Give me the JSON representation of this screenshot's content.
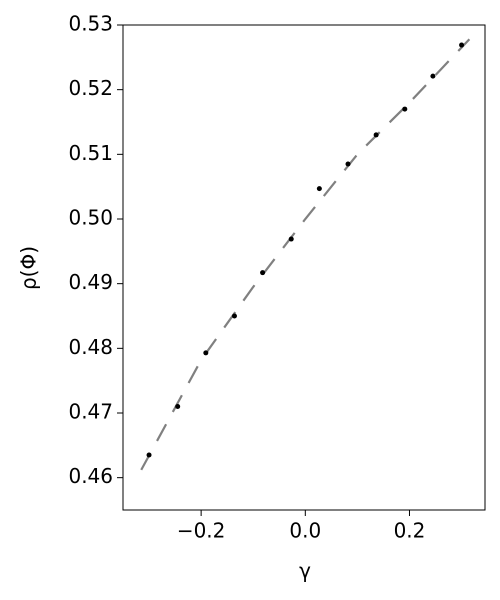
{
  "chart_data": {
    "type": "scatter",
    "x_label": "γ",
    "y_label": "ρ(Φ)",
    "xlim": [
      -0.35,
      0.345
    ],
    "ylim": [
      0.455,
      0.53
    ],
    "xticks": [
      {
        "value": -0.2,
        "label": "−0.2"
      },
      {
        "value": 0,
        "label": "0.0"
      },
      0.2
    ],
    "yticks": [
      0.46,
      0.47,
      0.48,
      0.49,
      {
        "value": 0.5,
        "label": "0.50"
      },
      0.51,
      0.52,
      0.53
    ],
    "series": [
      {
        "type": "line",
        "color": "#808080",
        "dashed": true,
        "x": [
          -0.315,
          -0.2,
          -0.1,
          0,
          0.1,
          0.2,
          0.315
        ],
        "values": [
          0.4612,
          0.4782,
          0.4895,
          0.5,
          0.51,
          0.518,
          0.5278
        ]
      },
      {
        "type": "scatter",
        "color": "#000000",
        "x": [
          -0.3,
          -0.245,
          -0.191,
          -0.136,
          -0.082,
          -0.027,
          0.027,
          0.082,
          0.136,
          0.191,
          0.245,
          0.3
        ],
        "values": [
          0.4635,
          0.471,
          0.4793,
          0.485,
          0.4917,
          0.4969,
          0.5047,
          0.5085,
          0.513,
          0.517,
          0.5221,
          0.5269
        ]
      }
    ]
  }
}
